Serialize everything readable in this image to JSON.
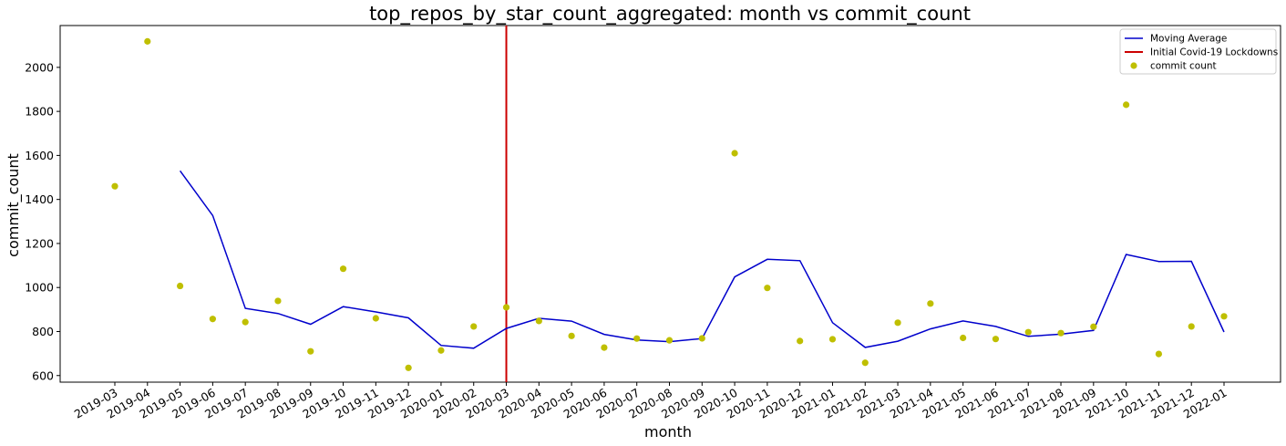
{
  "chart_data": {
    "type": "line",
    "title": "top_repos_by_star_count_aggregated: month vs commit_count",
    "xlabel": "month",
    "ylabel": "commit_count",
    "categories": [
      "2019-03",
      "2019-04",
      "2019-05",
      "2019-06",
      "2019-07",
      "2019-08",
      "2019-09",
      "2019-10",
      "2019-11",
      "2019-12",
      "2020-01",
      "2020-02",
      "2020-03",
      "2020-04",
      "2020-05",
      "2020-06",
      "2020-07",
      "2020-08",
      "2020-09",
      "2020-10",
      "2020-11",
      "2020-12",
      "2021-01",
      "2021-02",
      "2021-03",
      "2021-04",
      "2021-05",
      "2021-06",
      "2021-07",
      "2021-08",
      "2021-09",
      "2021-10",
      "2021-11",
      "2021-12",
      "2022-01"
    ],
    "ylim": [
      570,
      2190
    ],
    "yticks": [
      600,
      800,
      1000,
      1200,
      1400,
      1600,
      1800,
      2000
    ],
    "grid": false,
    "legend_position": "top-right",
    "series": [
      {
        "name": "Moving Average",
        "kind": "line",
        "color": "#0000cc",
        "values": [
          null,
          null,
          1530,
          1327,
          905,
          882,
          833,
          913,
          889,
          862,
          737,
          724,
          814,
          860,
          847,
          787,
          762,
          754,
          768,
          1048,
          1128,
          1122,
          840,
          728,
          756,
          812,
          848,
          823,
          778,
          788,
          805,
          1150,
          1118,
          1119,
          798
        ]
      },
      {
        "name": "commit count",
        "kind": "scatter",
        "color": "#bfbf00",
        "values": [
          1460,
          2118,
          1007,
          857,
          843,
          939,
          710,
          1085,
          860,
          635,
          714,
          823,
          910,
          848,
          780,
          727,
          768,
          760,
          769,
          1610,
          998,
          757,
          765,
          658,
          840,
          927,
          771,
          766,
          797,
          793,
          822,
          1830,
          698,
          823,
          869
        ]
      }
    ],
    "annotations": [
      {
        "name": "Initial Covid-19 Lockdowns",
        "kind": "vline",
        "x": "2020-03",
        "color": "#cc0000"
      }
    ]
  }
}
